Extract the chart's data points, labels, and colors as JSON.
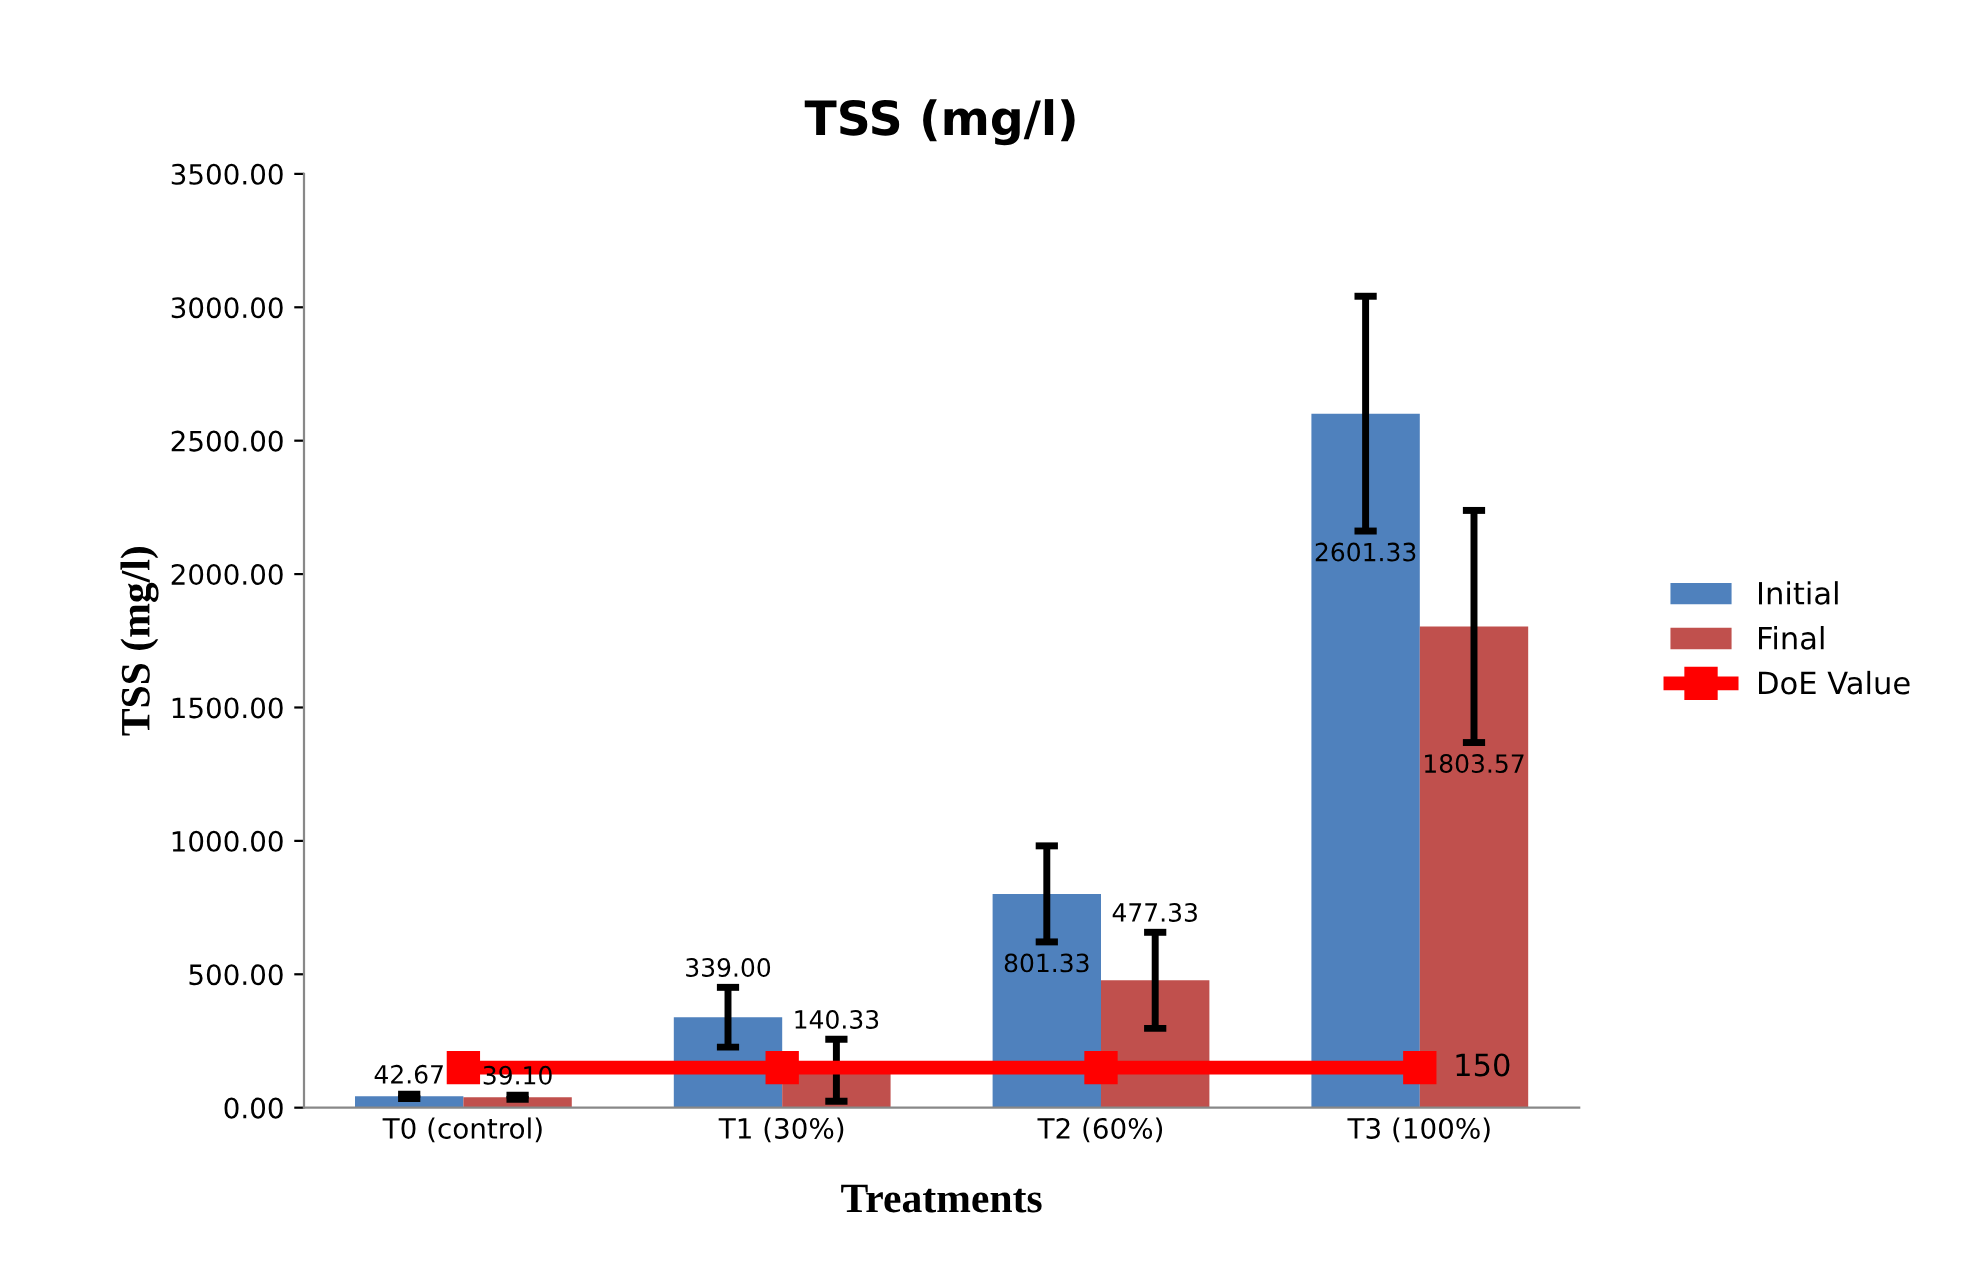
{
  "chart_data": {
    "type": "bar",
    "title": "TSS (mg/l)",
    "xlabel": "Treatments",
    "ylabel": "TSS (mg/l)",
    "categories": [
      "T0 (control)",
      "T1 (30%)",
      "T2 (60%)",
      "T3 (100%)"
    ],
    "series": [
      {
        "name": "Initial",
        "color": "#4f81bd",
        "values": [
          42.67,
          339.0,
          801.33,
          2601.33
        ],
        "errors": [
          8,
          112,
          180,
          440
        ],
        "value_labels": [
          "42.67",
          "339.00",
          "801.33",
          "2601.33"
        ]
      },
      {
        "name": "Final",
        "color": "#c0504d",
        "values": [
          39.1,
          140.33,
          477.33,
          1803.57
        ],
        "errors": [
          8,
          116,
          180,
          435
        ],
        "value_labels": [
          "39.10",
          "140.33",
          "477.33",
          "1803.57"
        ]
      },
      {
        "name": "DoE Value",
        "type": "line",
        "color": "#ff0000",
        "marker": "square",
        "values": [
          150,
          150,
          150,
          150
        ],
        "value_labels": [
          null,
          null,
          null,
          "150"
        ]
      }
    ],
    "ylim": [
      0,
      3500
    ],
    "yticks": [
      {
        "value": 0,
        "label": "0.00"
      },
      {
        "value": 500,
        "label": "500.00"
      },
      {
        "value": 1000,
        "label": "1000.00"
      },
      {
        "value": 1500,
        "label": "1500.00"
      },
      {
        "value": 2000,
        "label": "2000.00"
      },
      {
        "value": 2500,
        "label": "2500.00"
      },
      {
        "value": 3000,
        "label": "3000.00"
      },
      {
        "value": 3500,
        "label": "3500.00"
      }
    ],
    "legend": "right",
    "grid": false
  }
}
